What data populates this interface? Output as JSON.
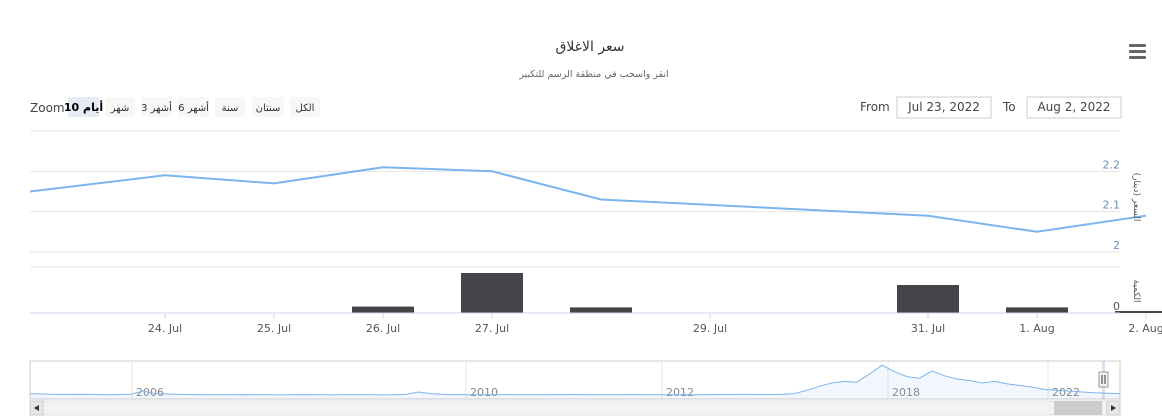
{
  "chart_data": {
    "type": "line",
    "title": "سعر الاغلاق",
    "subtitle": "انقر واسحب في منطقة الرسم للتكبير",
    "range_selector": {
      "zoom_label": "Zoom",
      "buttons": [
        {
          "label": "10 أيام",
          "selected": true
        },
        {
          "label": "شهر",
          "selected": false
        },
        {
          "label": "3 أشهر",
          "selected": false
        },
        {
          "label": "6 أشهر",
          "selected": false
        },
        {
          "label": "سنة",
          "selected": false
        },
        {
          "label": "سنتان",
          "selected": false
        },
        {
          "label": "الكل",
          "selected": false
        }
      ],
      "from_label": "From",
      "from_value": "Jul 23, 2022",
      "to_label": "To",
      "to_value": "Aug 2, 2022"
    },
    "x_range": [
      "2022-07-23",
      "2022-08-02"
    ],
    "x_ticks": [
      {
        "date": "2022-07-24",
        "label": "24. Jul"
      },
      {
        "date": "2022-07-25",
        "label": "25. Jul"
      },
      {
        "date": "2022-07-26",
        "label": "26. Jul"
      },
      {
        "date": "2022-07-27",
        "label": "27. Jul"
      },
      {
        "date": "2022-07-29",
        "label": "29. Jul"
      },
      {
        "date": "2022-07-31",
        "label": "31. Jul"
      },
      {
        "date": "2022-08-01",
        "label": "1. Aug"
      },
      {
        "date": "2022-08-02",
        "label": "2. Aug"
      }
    ],
    "price": {
      "ylabel": "السعر (دينار)",
      "yticks": [
        2,
        2.1,
        2.2
      ],
      "ylim": [
        1.98,
        2.3
      ],
      "color": "#7cb5ec",
      "points": [
        {
          "x": "2022-07-23",
          "y": 2.15
        },
        {
          "x": "2022-07-24",
          "y": 2.19
        },
        {
          "x": "2022-07-25",
          "y": 2.17
        },
        {
          "x": "2022-07-26",
          "y": 2.21
        },
        {
          "x": "2022-07-27",
          "y": 2.2
        },
        {
          "x": "2022-07-28",
          "y": 2.13
        },
        {
          "x": "2022-07-31",
          "y": 2.09
        },
        {
          "x": "2022-08-01",
          "y": 2.05
        },
        {
          "x": "2022-08-02",
          "y": 2.09
        }
      ]
    },
    "volume": {
      "ylabel": "الكمية",
      "yticks": [
        0
      ],
      "ylim": [
        0,
        1.15
      ],
      "color": "#434348",
      "bars": [
        {
          "x": "2022-07-26",
          "y": 0.16
        },
        {
          "x": "2022-07-27",
          "y": 1.0
        },
        {
          "x": "2022-07-28",
          "y": 0.14
        },
        {
          "x": "2022-07-31",
          "y": 0.7
        },
        {
          "x": "2022-08-01",
          "y": 0.14
        },
        {
          "x": "2022-08-02",
          "y": 0.05
        }
      ]
    },
    "navigator": {
      "year_labels": [
        "2006",
        "2010",
        "2012",
        "2018",
        "2022"
      ],
      "color": "#7cb5ec",
      "series": [
        2.1,
        2.05,
        2.0,
        2.0,
        2.02,
        1.98,
        1.95,
        1.97,
        2.0,
        2.4,
        2.1,
        2.05,
        2.0,
        1.98,
        1.95,
        1.96,
        1.95,
        1.97,
        1.96,
        1.95,
        1.94,
        1.96,
        1.97,
        1.95,
        1.94,
        1.95,
        1.96,
        1.95,
        1.94,
        1.95,
        2.0,
        2.3,
        2.1,
        2.0,
        1.97,
        1.96,
        1.95,
        1.96,
        1.97,
        1.96,
        1.95,
        1.96,
        1.97,
        1.98,
        1.97,
        1.96,
        1.95,
        1.96,
        1.97,
        1.96,
        1.95,
        1.96,
        1.97,
        1.96,
        1.97,
        1.98,
        1.99,
        2.0,
        1.99,
        1.98,
        2.0,
        2.1,
        2.5,
        3.0,
        3.4,
        3.6,
        3.5,
        4.5,
        5.6,
        4.8,
        4.2,
        4.0,
        4.9,
        4.3,
        3.9,
        3.7,
        3.4,
        3.6,
        3.3,
        3.1,
        2.9,
        2.6,
        2.5,
        2.4,
        2.3,
        2.2,
        2.15,
        2.1
      ]
    },
    "menu_icon": "hamburger-menu-icon",
    "scroll_icons": [
      "arrow-left-icon",
      "arrow-right-icon"
    ]
  }
}
